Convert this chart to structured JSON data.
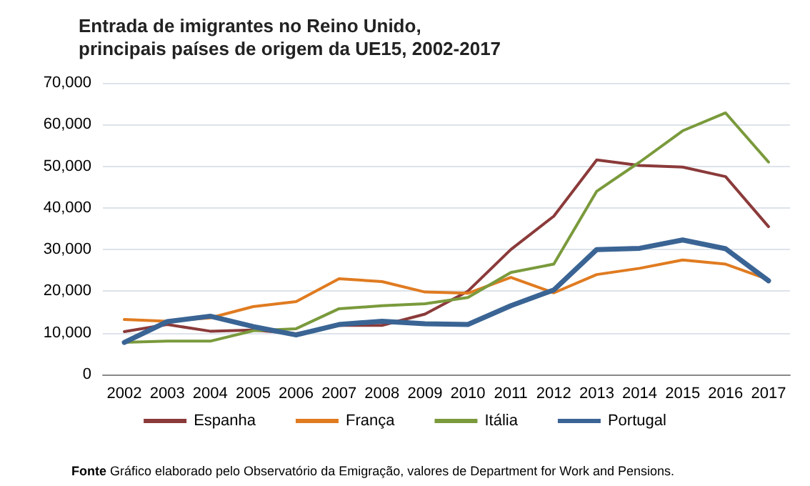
{
  "chart_data": {
    "type": "line",
    "title": "Entrada de imigrantes no Reino Unido,\nprincipais países de origem da UE15, 2002-2017",
    "categories": [
      "2002",
      "2003",
      "2004",
      "2005",
      "2006",
      "2007",
      "2008",
      "2009",
      "2010",
      "2011",
      "2012",
      "2013",
      "2014",
      "2015",
      "2016",
      "2017"
    ],
    "series": [
      {
        "name": "Espanha",
        "color": "#8b3a3a",
        "values": [
          10300,
          12000,
          10400,
          10700,
          9800,
          11800,
          11800,
          14500,
          20000,
          30000,
          38000,
          51500,
          50200,
          49800,
          47500,
          35500
        ]
      },
      {
        "name": "França",
        "color": "#e07b20",
        "values": [
          13200,
          12800,
          13600,
          16300,
          17500,
          23000,
          22300,
          19800,
          19500,
          23300,
          19600,
          24000,
          25500,
          27500,
          26500,
          22800
        ]
      },
      {
        "name": "Itália",
        "color": "#7a9a3c",
        "values": [
          7700,
          8000,
          8000,
          10500,
          11000,
          15800,
          16500,
          17000,
          18500,
          24500,
          26500,
          44000,
          51000,
          58500,
          62800,
          51000
        ]
      },
      {
        "name": "Portugal",
        "color": "#3a6494",
        "values": [
          7700,
          12700,
          14000,
          11500,
          9500,
          12000,
          12800,
          12200,
          12000,
          16500,
          20300,
          30000,
          30300,
          32300,
          30200,
          22500
        ]
      }
    ],
    "ylim": [
      0,
      70000
    ],
    "yticks": [
      {
        "value": 0,
        "label": "0"
      },
      {
        "value": 10000,
        "label": "10,000"
      },
      {
        "value": 20000,
        "label": "20,000"
      },
      {
        "value": 30000,
        "label": "30,000"
      },
      {
        "value": 40000,
        "label": "40,000"
      },
      {
        "value": 50000,
        "label": "50,000"
      },
      {
        "value": 60000,
        "label": "60,000"
      },
      {
        "value": 70000,
        "label": "70,000"
      }
    ],
    "grid": "y",
    "legend": "bottom",
    "marker": "none",
    "line_style": "solid",
    "annotations": [
      "Fonte Gráfico elaborado pelo Observatório da Emigração, valores de Department for Work and Pensions."
    ]
  }
}
